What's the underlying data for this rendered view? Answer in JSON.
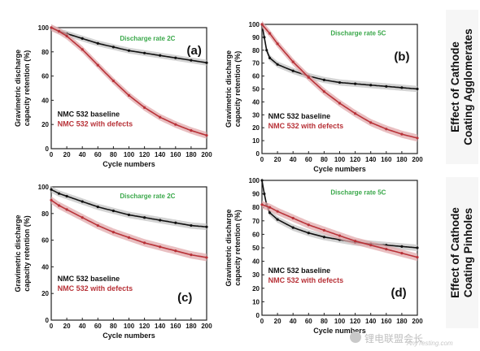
{
  "row_labels": [
    [
      "Effect of Cathode",
      "Coating Agglomerates"
    ],
    [
      "Effect of Cathode",
      "Coating Pinholes"
    ]
  ],
  "watermark": {
    "text": "锂电联盟会长",
    "sub": "AnyTesting.com"
  },
  "colors": {
    "baseline": "#111111",
    "defects": "#b83238",
    "defects_band": "#e2a9ac",
    "baseline_band": "#c4c4c4",
    "rate_text": "#3aa84a"
  },
  "chart_data": [
    {
      "type": "line",
      "panel": "(a)",
      "rate_label": "Discharge rate 2C",
      "xlabel": "Cycle numbers",
      "ylabel": [
        "Gravimetric discharge",
        "capacity retention (%)"
      ],
      "xlim": [
        0,
        200
      ],
      "ylim": [
        0,
        100
      ],
      "xticks": [
        0,
        20,
        40,
        60,
        80,
        100,
        120,
        140,
        160,
        180,
        200
      ],
      "yticks": [
        0,
        20,
        40,
        60,
        80,
        100
      ],
      "legend_position": "bottom-left",
      "series": [
        {
          "name": "NMC  532 baseline",
          "x": [
            0,
            10,
            20,
            40,
            60,
            80,
            100,
            120,
            140,
            160,
            180,
            200
          ],
          "y": [
            100,
            97,
            95,
            91,
            87,
            84,
            81,
            79,
            77,
            75,
            73,
            71
          ]
        },
        {
          "name": "NMC  532 with defects",
          "x": [
            0,
            10,
            20,
            40,
            60,
            80,
            100,
            120,
            140,
            160,
            180,
            200
          ],
          "y": [
            100,
            97,
            93,
            82,
            69,
            56,
            44,
            34,
            26,
            20,
            15,
            11
          ]
        }
      ]
    },
    {
      "type": "line",
      "panel": "(b)",
      "rate_label": "Discharge rate 5C",
      "xlabel": "Cycle numbers",
      "ylabel": [
        "Gravimetric discharge",
        "capacity retention (%)"
      ],
      "xlim": [
        0,
        200
      ],
      "ylim": [
        0,
        100
      ],
      "xticks": [
        0,
        20,
        40,
        60,
        80,
        100,
        120,
        140,
        160,
        180,
        200
      ],
      "yticks": [
        0,
        10,
        20,
        30,
        40,
        50,
        60,
        70,
        80,
        90,
        100
      ],
      "legend_position": "bottom-left",
      "series": [
        {
          "name": "NMC  532 baseline",
          "x": [
            0,
            3,
            6,
            10,
            20,
            40,
            60,
            80,
            100,
            120,
            140,
            160,
            180,
            200
          ],
          "y": [
            100,
            90,
            80,
            74,
            69,
            64,
            60,
            57,
            55,
            54,
            53,
            52,
            51,
            50
          ]
        },
        {
          "name": "NMC  532 with defects",
          "x": [
            0,
            10,
            20,
            40,
            60,
            80,
            100,
            120,
            140,
            160,
            180,
            200
          ],
          "y": [
            100,
            93,
            85,
            71,
            59,
            48,
            39,
            31,
            24,
            19,
            15,
            12
          ]
        }
      ]
    },
    {
      "type": "line",
      "panel": "(c)",
      "rate_label": "Discharge rate 2C",
      "xlabel": "Cycle numbers",
      "ylabel": [
        "Gravimetric discharge",
        "capacity retention (%)"
      ],
      "xlim": [
        0,
        200
      ],
      "ylim": [
        0,
        100
      ],
      "xticks": [
        0,
        20,
        40,
        60,
        80,
        100,
        120,
        140,
        160,
        180,
        200
      ],
      "yticks": [
        0,
        20,
        40,
        60,
        80,
        100
      ],
      "legend_position": "bottom-left",
      "series": [
        {
          "name": "NMC  532 baseline",
          "x": [
            0,
            10,
            20,
            40,
            60,
            80,
            100,
            120,
            140,
            160,
            180,
            200
          ],
          "y": [
            98,
            95,
            93,
            89,
            85,
            82,
            79,
            77,
            75,
            73,
            71,
            70
          ]
        },
        {
          "name": "NMC  532 with defects",
          "x": [
            0,
            10,
            20,
            40,
            60,
            80,
            100,
            120,
            140,
            160,
            180,
            200
          ],
          "y": [
            90,
            86,
            83,
            77,
            71,
            66,
            62,
            58,
            55,
            52,
            49,
            47
          ]
        }
      ]
    },
    {
      "type": "line",
      "panel": "(d)",
      "rate_label": "Discharge rate 5C",
      "xlabel": "Cycle numbers",
      "ylabel": [
        "Gravimetric discharge",
        "capacity retention (%)"
      ],
      "xlim": [
        0,
        200
      ],
      "ylim": [
        0,
        100
      ],
      "xticks": [
        0,
        20,
        40,
        60,
        80,
        100,
        120,
        140,
        160,
        180,
        200
      ],
      "yticks": [
        0,
        10,
        20,
        30,
        40,
        50,
        60,
        70,
        80,
        90,
        100
      ],
      "legend_position": "bottom-left",
      "series": [
        {
          "name": "NMC  532 baseline",
          "x": [
            0,
            3,
            6,
            10,
            20,
            40,
            60,
            80,
            100,
            120,
            140,
            160,
            180,
            200
          ],
          "y": [
            100,
            90,
            82,
            76,
            71,
            65,
            61,
            58,
            56,
            54,
            53,
            52,
            51,
            50
          ]
        },
        {
          "name": "NMC  532 with defects",
          "x": [
            0,
            10,
            20,
            40,
            60,
            80,
            100,
            120,
            140,
            160,
            180,
            200
          ],
          "y": [
            82,
            80,
            77,
            72,
            67,
            63,
            59,
            55,
            52,
            49,
            46,
            43
          ]
        }
      ]
    }
  ]
}
